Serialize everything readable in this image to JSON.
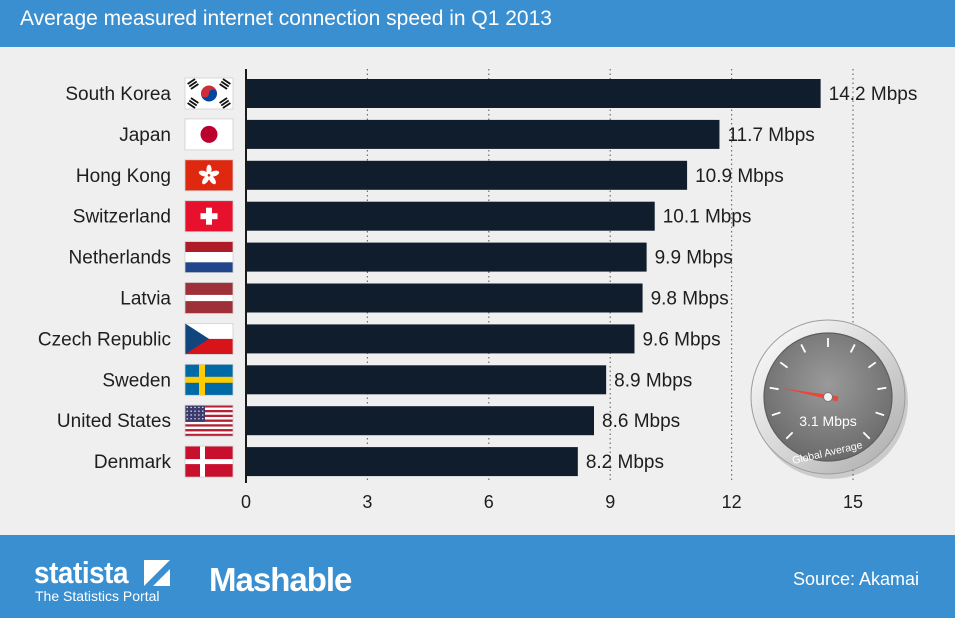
{
  "header": {
    "title": "Average measured internet connection speed in Q1 2013"
  },
  "chart_data": {
    "type": "bar",
    "orientation": "horizontal",
    "categories": [
      "South Korea",
      "Japan",
      "Hong Kong",
      "Switzerland",
      "Netherlands",
      "Latvia",
      "Czech Republic",
      "Sweden",
      "United States",
      "Denmark"
    ],
    "values": [
      14.2,
      11.7,
      10.9,
      10.1,
      9.9,
      9.8,
      9.6,
      8.9,
      8.6,
      8.2
    ],
    "value_labels": [
      "14.2 Mbps",
      "11.7 Mbps",
      "10.9 Mbps",
      "10.1 Mbps",
      "9.9 Mbps",
      "9.8 Mbps",
      "9.6 Mbps",
      "8.9 Mbps",
      "8.6 Mbps",
      "8.2 Mbps"
    ],
    "flags": [
      "south-korea-flag-icon",
      "japan-flag-icon",
      "hong-kong-flag-icon",
      "switzerland-flag-icon",
      "netherlands-flag-icon",
      "latvia-flag-icon",
      "czech-republic-flag-icon",
      "sweden-flag-icon",
      "united-states-flag-icon",
      "denmark-flag-icon"
    ],
    "xticks": [
      0,
      3,
      6,
      9,
      12,
      15
    ],
    "xlim": [
      0,
      15
    ],
    "grid": "vertical dotted",
    "bar_color": "#0f1d2d",
    "gauge": {
      "value": 3.1,
      "label": "3.1 Mbps",
      "caption": "Global Average"
    }
  },
  "footer": {
    "brand": "statista",
    "tagline": "The Statistics Portal",
    "partner": "Mashable",
    "source": "Source: Akamai"
  },
  "colors": {
    "accent": "#3a8fd0",
    "background": "#efefef",
    "bar": "#0f1d2d"
  }
}
